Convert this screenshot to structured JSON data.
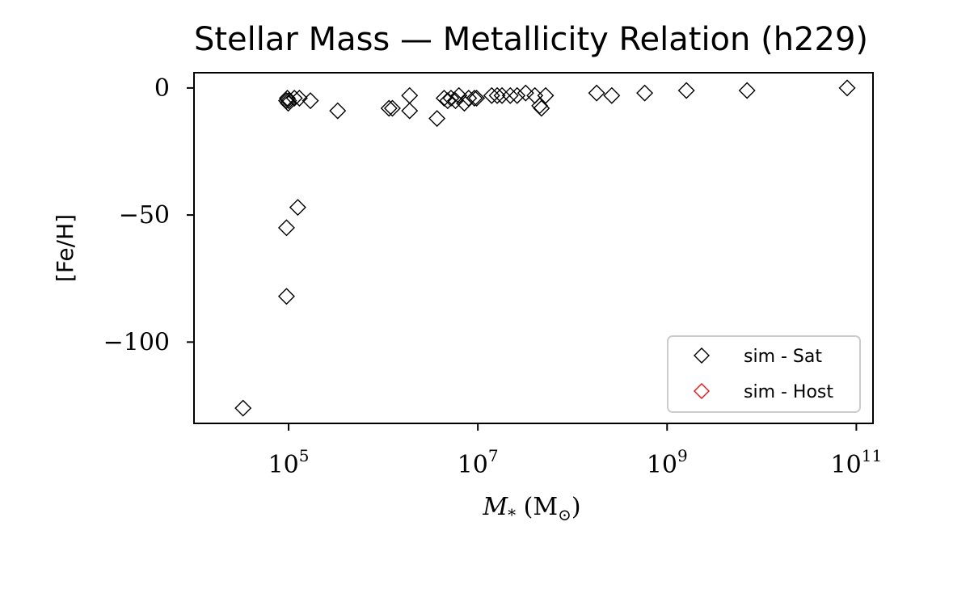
{
  "chart_data": {
    "type": "scatter",
    "title": "Stellar Mass — Metallicity Relation (h229)",
    "xlabel_main": "M",
    "xlabel_sub": "*",
    "xlabel_unit_open": " (M",
    "xlabel_unit_sub": "⊙",
    "xlabel_unit_close": ")",
    "ylabel": "[Fe/H]",
    "x_scale": "log",
    "xlim": [
      10000,
      150000000000
    ],
    "ylim": [
      -132,
      6
    ],
    "grid": false,
    "legend_placement": "lower-right",
    "x_ticks": [
      {
        "base": "10",
        "exp": "5",
        "value": 100000
      },
      {
        "base": "10",
        "exp": "7",
        "value": 10000000
      },
      {
        "base": "10",
        "exp": "9",
        "value": 1000000000
      },
      {
        "base": "10",
        "exp": "11",
        "value": 100000000000
      }
    ],
    "y_ticks": [
      {
        "label": "0",
        "value": 0
      },
      {
        "label": "−50",
        "value": -50
      },
      {
        "label": "−100",
        "value": -100
      }
    ],
    "series": [
      {
        "name": "sim - Sat",
        "color": "#000000",
        "marker": "diamond-open",
        "points": [
          [
            33000,
            -126
          ],
          [
            95000,
            -55
          ],
          [
            95000,
            -82
          ],
          [
            125000,
            -47
          ],
          [
            95000,
            -5
          ],
          [
            97000,
            -4
          ],
          [
            99000,
            -6
          ],
          [
            100000,
            -5
          ],
          [
            115000,
            -4
          ],
          [
            130000,
            -4
          ],
          [
            170000,
            -5
          ],
          [
            330000,
            -9
          ],
          [
            1150000,
            -8
          ],
          [
            1250000,
            -8
          ],
          [
            1900000,
            -3
          ],
          [
            1900000,
            -9
          ],
          [
            3700000,
            -12
          ],
          [
            4400000,
            -4
          ],
          [
            4800000,
            -5
          ],
          [
            5200000,
            -4
          ],
          [
            5800000,
            -5
          ],
          [
            6300000,
            -3
          ],
          [
            7200000,
            -6
          ],
          [
            8000000,
            -4
          ],
          [
            9200000,
            -4
          ],
          [
            9700000,
            -4
          ],
          [
            14000000,
            -3
          ],
          [
            16000000,
            -3
          ],
          [
            18000000,
            -3
          ],
          [
            22000000,
            -3
          ],
          [
            26000000,
            -3
          ],
          [
            32000000,
            -2
          ],
          [
            40000000,
            -3
          ],
          [
            45000000,
            -7
          ],
          [
            47000000,
            -8
          ],
          [
            52000000,
            -3
          ],
          [
            180000000,
            -2
          ],
          [
            260000000,
            -3
          ],
          [
            580000000,
            -2
          ],
          [
            1600000000,
            -1
          ],
          [
            7000000000,
            -1
          ],
          [
            80000000000,
            0
          ]
        ]
      },
      {
        "name": "sim - Host",
        "color": "#e8120c",
        "marker": "diamond-open",
        "points": []
      }
    ]
  }
}
